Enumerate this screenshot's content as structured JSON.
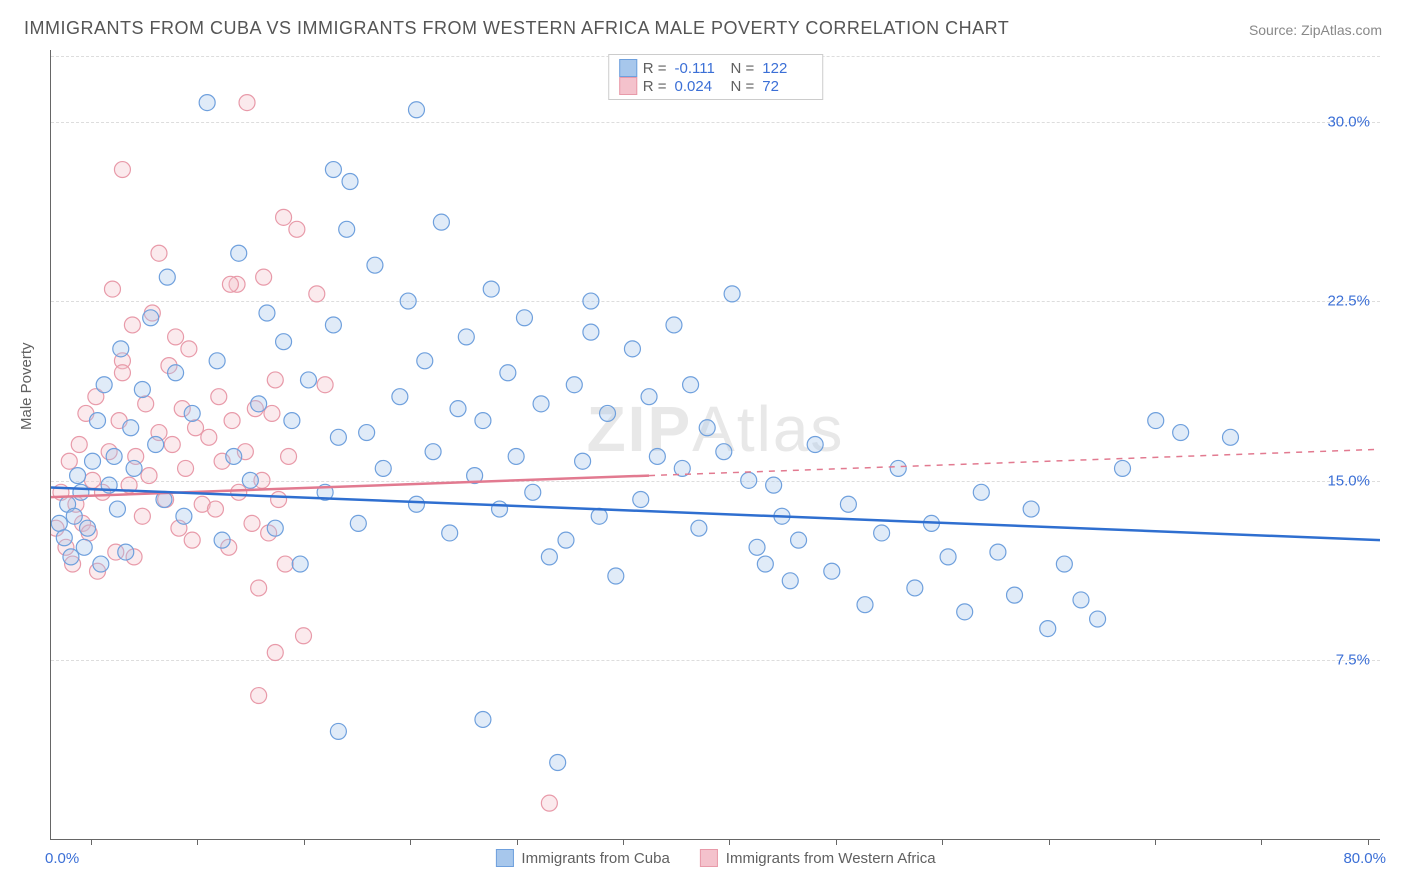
{
  "title": "IMMIGRANTS FROM CUBA VS IMMIGRANTS FROM WESTERN AFRICA MALE POVERTY CORRELATION CHART",
  "source": "Source: ZipAtlas.com",
  "ylabel": "Male Poverty",
  "watermark_bold": "ZIP",
  "watermark_light": "Atlas",
  "chart": {
    "type": "scatter",
    "xlim": [
      0,
      80
    ],
    "ylim": [
      0,
      33
    ],
    "xtick_labels": [
      "0.0%",
      "80.0%"
    ],
    "ytick_values": [
      7.5,
      15.0,
      22.5,
      30.0
    ],
    "ytick_labels": [
      "7.5%",
      "15.0%",
      "22.5%",
      "30.0%"
    ],
    "xtick_positions_pct": [
      3,
      11,
      19,
      27,
      35,
      43,
      51,
      59,
      67,
      75,
      83,
      91,
      99
    ],
    "grid_color": "#dddddd",
    "background_color": "#ffffff",
    "axis_color": "#666666",
    "marker_radius": 8,
    "marker_stroke_width": 1.2,
    "marker_fill_opacity": 0.35,
    "trend_line_width": 2.5,
    "title_fontsize": 18,
    "label_fontsize": 15,
    "tick_fontsize": 15,
    "tick_color": "#3b6fd6"
  },
  "series": [
    {
      "name": "Immigrants from Cuba",
      "color_fill": "#a7c7ec",
      "color_stroke": "#6fa0dd",
      "trend_color": "#2f6fd0",
      "trend_dash": "none",
      "R": "-0.111",
      "N": "122",
      "trend": {
        "x1": 0,
        "y1": 14.7,
        "x2": 80,
        "y2": 12.5
      },
      "points": [
        [
          0.5,
          13.2
        ],
        [
          0.8,
          12.6
        ],
        [
          1.0,
          14.0
        ],
        [
          1.2,
          11.8
        ],
        [
          1.4,
          13.5
        ],
        [
          1.6,
          15.2
        ],
        [
          1.8,
          14.5
        ],
        [
          2.0,
          12.2
        ],
        [
          2.2,
          13.0
        ],
        [
          2.5,
          15.8
        ],
        [
          2.8,
          17.5
        ],
        [
          3.0,
          11.5
        ],
        [
          3.2,
          19.0
        ],
        [
          3.5,
          14.8
        ],
        [
          3.8,
          16.0
        ],
        [
          4.0,
          13.8
        ],
        [
          4.2,
          20.5
        ],
        [
          4.5,
          12.0
        ],
        [
          4.8,
          17.2
        ],
        [
          5.0,
          15.5
        ],
        [
          5.5,
          18.8
        ],
        [
          6.0,
          21.8
        ],
        [
          6.3,
          16.5
        ],
        [
          6.8,
          14.2
        ],
        [
          7.0,
          23.5
        ],
        [
          7.5,
          19.5
        ],
        [
          8.0,
          13.5
        ],
        [
          8.5,
          17.8
        ],
        [
          9.4,
          30.8
        ],
        [
          10.0,
          20.0
        ],
        [
          10.3,
          12.5
        ],
        [
          11.0,
          16.0
        ],
        [
          11.3,
          24.5
        ],
        [
          12.0,
          15.0
        ],
        [
          12.5,
          18.2
        ],
        [
          13.0,
          22.0
        ],
        [
          13.5,
          13.0
        ],
        [
          14.0,
          20.8
        ],
        [
          14.5,
          17.5
        ],
        [
          15.0,
          11.5
        ],
        [
          15.5,
          19.2
        ],
        [
          18.0,
          27.5
        ],
        [
          16.5,
          14.5
        ],
        [
          17.0,
          21.5
        ],
        [
          17.3,
          16.8
        ],
        [
          17.8,
          25.5
        ],
        [
          18.5,
          13.2
        ],
        [
          19.0,
          17.0
        ],
        [
          19.5,
          24.0
        ],
        [
          20.0,
          15.5
        ],
        [
          17.0,
          28.0
        ],
        [
          21.0,
          18.5
        ],
        [
          21.5,
          22.5
        ],
        [
          22.0,
          14.0
        ],
        [
          22.5,
          20.0
        ],
        [
          23.0,
          16.2
        ],
        [
          23.5,
          25.8
        ],
        [
          24.0,
          12.8
        ],
        [
          24.5,
          18.0
        ],
        [
          25.0,
          21.0
        ],
        [
          25.5,
          15.2
        ],
        [
          26.0,
          17.5
        ],
        [
          26.5,
          23.0
        ],
        [
          27.0,
          13.8
        ],
        [
          27.5,
          19.5
        ],
        [
          28.0,
          16.0
        ],
        [
          28.5,
          21.8
        ],
        [
          29.0,
          14.5
        ],
        [
          29.5,
          18.2
        ],
        [
          30.0,
          11.8
        ],
        [
          22.0,
          30.5
        ],
        [
          31.0,
          12.5
        ],
        [
          31.5,
          19.0
        ],
        [
          32.0,
          15.8
        ],
        [
          32.5,
          21.2
        ],
        [
          33.0,
          13.5
        ],
        [
          33.5,
          17.8
        ],
        [
          34.0,
          11.0
        ],
        [
          17.3,
          4.5
        ],
        [
          35.0,
          20.5
        ],
        [
          35.5,
          14.2
        ],
        [
          36.0,
          18.5
        ],
        [
          36.5,
          16.0
        ],
        [
          26.0,
          5.0
        ],
        [
          37.5,
          21.5
        ],
        [
          38.0,
          15.5
        ],
        [
          38.5,
          19.0
        ],
        [
          39.0,
          13.0
        ],
        [
          39.5,
          17.2
        ],
        [
          30.5,
          3.2
        ],
        [
          40.5,
          16.2
        ],
        [
          41.0,
          22.8
        ],
        [
          32.5,
          22.5
        ],
        [
          42.0,
          15.0
        ],
        [
          42.5,
          12.2
        ],
        [
          43.0,
          11.5
        ],
        [
          43.5,
          14.8
        ],
        [
          44.0,
          13.5
        ],
        [
          44.5,
          10.8
        ],
        [
          45.0,
          12.5
        ],
        [
          46.0,
          16.5
        ],
        [
          47.0,
          11.2
        ],
        [
          48.0,
          14.0
        ],
        [
          49.0,
          9.8
        ],
        [
          50.0,
          12.8
        ],
        [
          51.0,
          15.5
        ],
        [
          52.0,
          10.5
        ],
        [
          53.0,
          13.2
        ],
        [
          54.0,
          11.8
        ],
        [
          55.0,
          9.5
        ],
        [
          56.0,
          14.5
        ],
        [
          57.0,
          12.0
        ],
        [
          58.0,
          10.2
        ],
        [
          59.0,
          13.8
        ],
        [
          60.0,
          8.8
        ],
        [
          61.0,
          11.5
        ],
        [
          62.0,
          10.0
        ],
        [
          63.0,
          9.2
        ],
        [
          64.5,
          15.5
        ],
        [
          66.5,
          17.5
        ],
        [
          68.0,
          17.0
        ],
        [
          71.0,
          16.8
        ]
      ]
    },
    {
      "name": "Immigrants from Western Africa",
      "color_fill": "#f4c2cc",
      "color_stroke": "#e89aa9",
      "trend_color": "#e27a90",
      "trend_dash": "solid_then_dash",
      "R": "0.024",
      "N": "72",
      "trend_solid": {
        "x1": 0,
        "y1": 14.3,
        "x2": 36,
        "y2": 15.2
      },
      "trend_dash_seg": {
        "x1": 36,
        "y1": 15.2,
        "x2": 80,
        "y2": 16.3
      },
      "points": [
        [
          0.3,
          13.0
        ],
        [
          0.6,
          14.5
        ],
        [
          0.9,
          12.2
        ],
        [
          1.1,
          15.8
        ],
        [
          1.3,
          11.5
        ],
        [
          1.5,
          14.0
        ],
        [
          1.7,
          16.5
        ],
        [
          1.9,
          13.2
        ],
        [
          2.1,
          17.8
        ],
        [
          2.3,
          12.8
        ],
        [
          2.5,
          15.0
        ],
        [
          2.7,
          18.5
        ],
        [
          2.8,
          11.2
        ],
        [
          3.1,
          14.5
        ],
        [
          4.3,
          20.0
        ],
        [
          3.5,
          16.2
        ],
        [
          3.7,
          23.0
        ],
        [
          3.9,
          12.0
        ],
        [
          4.1,
          17.5
        ],
        [
          4.3,
          19.5
        ],
        [
          4.3,
          28.0
        ],
        [
          4.7,
          14.8
        ],
        [
          4.9,
          21.5
        ],
        [
          5.1,
          16.0
        ],
        [
          6.5,
          24.5
        ],
        [
          5.5,
          13.5
        ],
        [
          5.7,
          18.2
        ],
        [
          5.9,
          15.2
        ],
        [
          6.1,
          22.0
        ],
        [
          5.0,
          11.8
        ],
        [
          6.5,
          17.0
        ],
        [
          11.2,
          23.2
        ],
        [
          6.9,
          14.2
        ],
        [
          7.1,
          19.8
        ],
        [
          7.3,
          16.5
        ],
        [
          7.5,
          21.0
        ],
        [
          7.7,
          13.0
        ],
        [
          7.9,
          18.0
        ],
        [
          8.1,
          15.5
        ],
        [
          8.3,
          20.5
        ],
        [
          8.5,
          12.5
        ],
        [
          8.7,
          17.2
        ],
        [
          10.8,
          23.2
        ],
        [
          9.1,
          14.0
        ],
        [
          11.8,
          30.8
        ],
        [
          9.5,
          16.8
        ],
        [
          12.8,
          23.5
        ],
        [
          9.9,
          13.8
        ],
        [
          10.1,
          18.5
        ],
        [
          10.3,
          15.8
        ],
        [
          14.8,
          25.5
        ],
        [
          10.7,
          12.2
        ],
        [
          10.9,
          17.5
        ],
        [
          14.0,
          26.0
        ],
        [
          11.3,
          14.5
        ],
        [
          13.5,
          19.2
        ],
        [
          11.7,
          16.2
        ],
        [
          16.0,
          22.8
        ],
        [
          12.1,
          13.2
        ],
        [
          12.3,
          18.0
        ],
        [
          12.5,
          10.5
        ],
        [
          12.7,
          15.0
        ],
        [
          12.5,
          6.0
        ],
        [
          13.1,
          12.8
        ],
        [
          13.3,
          17.8
        ],
        [
          13.5,
          7.8
        ],
        [
          13.7,
          14.2
        ],
        [
          16.5,
          19.0
        ],
        [
          14.1,
          11.5
        ],
        [
          14.3,
          16.0
        ],
        [
          15.2,
          8.5
        ],
        [
          30.0,
          1.5
        ]
      ]
    }
  ],
  "legend_top_labels": {
    "R": "R =",
    "N": "N ="
  },
  "legend_bottom": [
    {
      "label": "Immigrants from Cuba",
      "fill": "#a7c7ec",
      "stroke": "#6fa0dd"
    },
    {
      "label": "Immigrants from Western Africa",
      "fill": "#f4c2cc",
      "stroke": "#e89aa9"
    }
  ]
}
